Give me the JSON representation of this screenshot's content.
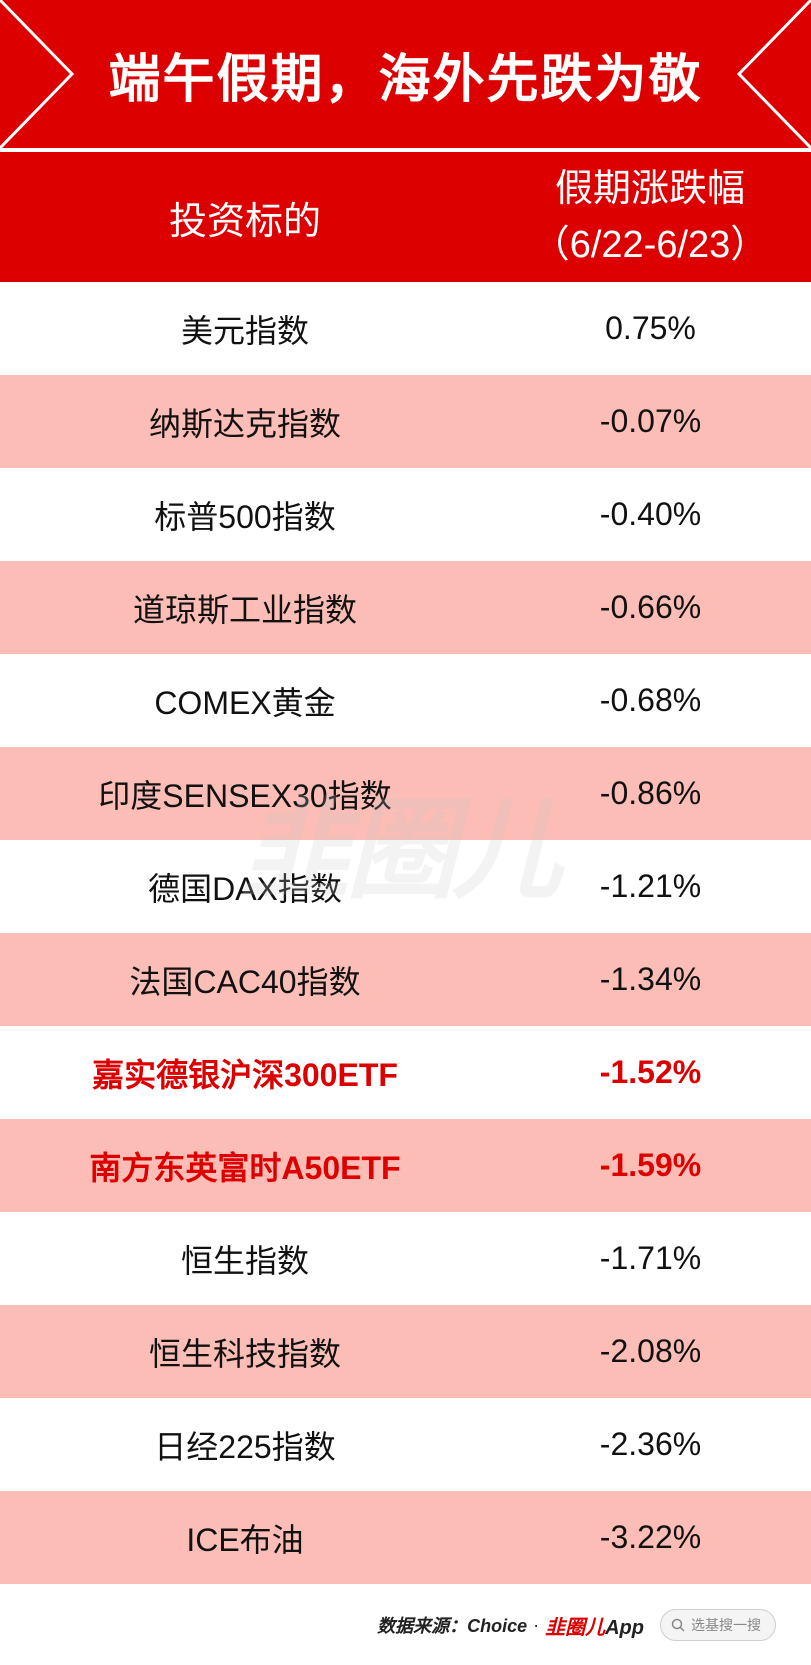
{
  "banner": {
    "title": "端午假期，海外先跌为敬",
    "background": "#dc0000"
  },
  "header": {
    "col_name": "投资标的",
    "col_change_line1": "假期涨跌幅",
    "col_change_line2": "（6/22-6/23）"
  },
  "rows": [
    {
      "name": "美元指数",
      "value": "0.75%",
      "highlight": false
    },
    {
      "name": "纳斯达克指数",
      "value": "-0.07%",
      "highlight": false
    },
    {
      "name": "标普500指数",
      "value": "-0.40%",
      "highlight": false
    },
    {
      "name": "道琼斯工业指数",
      "value": "-0.66%",
      "highlight": false
    },
    {
      "name": "COMEX黄金",
      "value": "-0.68%",
      "highlight": false
    },
    {
      "name": "印度SENSEX30指数",
      "value": "-0.86%",
      "highlight": false
    },
    {
      "name": "德国DAX指数",
      "value": "-1.21%",
      "highlight": false
    },
    {
      "name": "法国CAC40指数",
      "value": "-1.34%",
      "highlight": false
    },
    {
      "name": "嘉实德银沪深300ETF",
      "value": "-1.52%",
      "highlight": true
    },
    {
      "name": "南方东英富时A50ETF",
      "value": "-1.59%",
      "highlight": true
    },
    {
      "name": "恒生指数",
      "value": "-1.71%",
      "highlight": false
    },
    {
      "name": "恒生科技指数",
      "value": "-2.08%",
      "highlight": false
    },
    {
      "name": "日经225指数",
      "value": "-2.36%",
      "highlight": false
    },
    {
      "name": "ICE布油",
      "value": "-3.22%",
      "highlight": false
    }
  ],
  "watermark": "韭圈儿",
  "footer": {
    "source": "数据来源：Choice",
    "separator": "·",
    "app_logo_red": "韭圈儿",
    "app_logo_suffix": "App",
    "search_placeholder": "选基搜一搜"
  },
  "colors": {
    "brand_red": "#dc0000",
    "stripe_pink": "#fbbdb5"
  }
}
